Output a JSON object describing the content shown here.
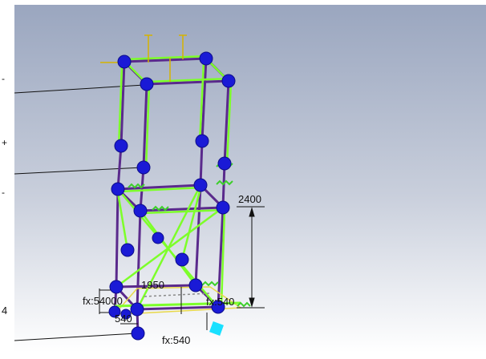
{
  "viewport": {
    "background_top": "#9aa6bf",
    "background_bottom": "#ffffff",
    "colors": {
      "frame_green": "#7dff2a",
      "member_purple": "#5a2a8c",
      "node_blue": "#1a1ad6",
      "selected_node": "#19e0ff",
      "dimension_line": "#111111",
      "load_arrow": "#d6b300"
    }
  },
  "annotations": {
    "dim_2400": "2400",
    "dim_1950": "1950",
    "dim_540": "540",
    "label_fx_left": "fx:54000",
    "label_fx_bottom": "fx:540",
    "label_fx_right": "fx:540"
  },
  "margin_marks": {
    "mark_1": "-",
    "mark_2": "+",
    "mark_3": "-",
    "mark_4": "4"
  }
}
